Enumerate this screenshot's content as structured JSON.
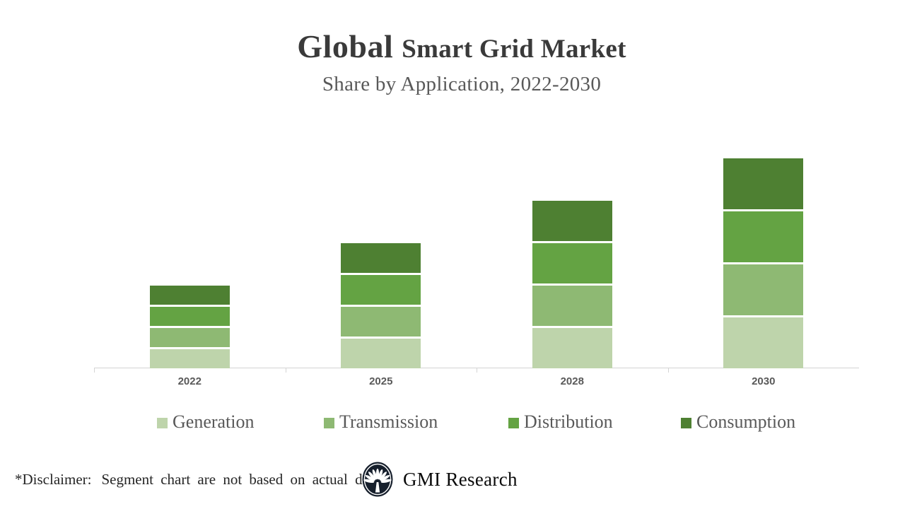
{
  "header": {
    "title_primary": "Global",
    "title_secondary": "Smart Grid Market",
    "subtitle": "Share by Application, 2022-2030"
  },
  "chart_data": {
    "type": "bar",
    "stacked": true,
    "title": "Global Smart Grid Market Share by Application, 2022-2030",
    "categories": [
      "2022",
      "2025",
      "2028",
      "2030"
    ],
    "series": [
      {
        "name": "Generation",
        "color": "#bed4ab",
        "values": [
          27,
          42,
          57,
          72
        ]
      },
      {
        "name": "Transmission",
        "color": "#8eb973",
        "values": [
          27,
          42,
          57,
          72
        ]
      },
      {
        "name": "Distribution",
        "color": "#64a343",
        "values": [
          27,
          42,
          57,
          72
        ]
      },
      {
        "name": "Consumption",
        "color": "#4e8032",
        "values": [
          27,
          42,
          57,
          72
        ]
      }
    ],
    "stack_order_bottom_to_top": [
      "Generation",
      "Transmission",
      "Distribution",
      "Consumption"
    ],
    "value_units": "relative units (segments are equal and illustrative per disclaimer; no value axis shown)",
    "xlabel": "",
    "ylabel": "",
    "grid": false,
    "legend_position": "bottom",
    "axis_color": "#d4d4d4",
    "tick_label_color": "#595959"
  },
  "footer": {
    "disclaimer_label": "*Disclaimer:",
    "disclaimer_text": "Segment chart are not based on actual data",
    "brand": "GMI Research"
  },
  "icons": {
    "logo": "gmi-palmetto-logo"
  }
}
